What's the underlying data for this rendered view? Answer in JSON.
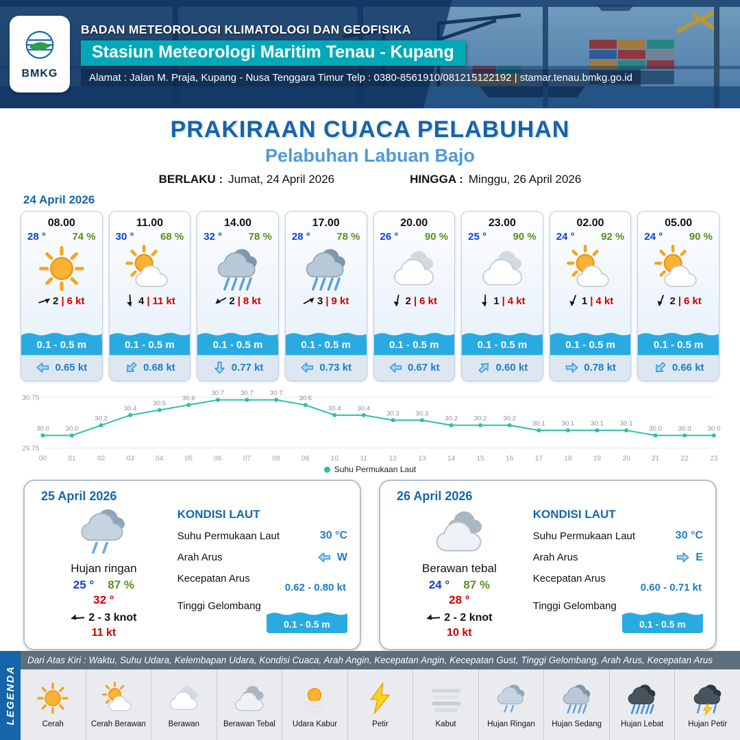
{
  "header": {
    "org": "BADAN METEOROLOGI KLIMATOLOGI DAN GEOFISIKA",
    "station": "Stasiun Meteorologi Maritim Tenau - Kupang",
    "address": "Alamat : Jalan M. Praja, Kupang - Nusa Tenggara Timur Telp : 0380-8561910/081215122192  | stamar.tenau.bmkg.go.id",
    "logo_text": "BMKG"
  },
  "title": {
    "main": "PRAKIRAAN CUACA PELABUHAN",
    "sub": "Pelabuhan Labuan Bajo",
    "valid_from_label": "BERLAKU :",
    "valid_from": "Jumat, 24 April 2026",
    "valid_to_label": "HINGGA :",
    "valid_to": "Minggu, 26 April 2026"
  },
  "hourly": {
    "date": "24 April 2026",
    "sep": "|",
    "cards": [
      {
        "time": "08.00",
        "temp": "28 °",
        "humidity": "74 %",
        "icon": "cerah",
        "wind_speed": "2",
        "gust": "6 kt",
        "wind_rot": 30,
        "wave": "0.1 - 0.5 m",
        "current_speed": "0.65 kt",
        "current_rot": 180
      },
      {
        "time": "11.00",
        "temp": "30 °",
        "humidity": "68 %",
        "icon": "cerah-berawan",
        "wind_speed": "4",
        "gust": "11 kt",
        "wind_rot": 135,
        "wave": "0.1 - 0.5 m",
        "current_speed": "0.68 kt",
        "current_rot": 135
      },
      {
        "time": "14.00",
        "temp": "32 °",
        "humidity": "78 %",
        "icon": "hujan-sedang",
        "wind_speed": "2",
        "gust": "8 kt",
        "wind_rot": 200,
        "wave": "0.1 - 0.5 m",
        "current_speed": "0.77 kt",
        "current_rot": 90
      },
      {
        "time": "17.00",
        "temp": "28 °",
        "humidity": "78 %",
        "icon": "hujan-sedang",
        "wind_speed": "3",
        "gust": "9 kt",
        "wind_rot": 20,
        "wave": "0.1 - 0.5 m",
        "current_speed": "0.73 kt",
        "current_rot": 180
      },
      {
        "time": "20.00",
        "temp": "26 °",
        "humidity": "90 %",
        "icon": "berawan",
        "wind_speed": "2",
        "gust": "6 kt",
        "wind_rot": 150,
        "wave": "0.1 - 0.5 m",
        "current_speed": "0.67 kt",
        "current_rot": 180
      },
      {
        "time": "23.00",
        "temp": "25 °",
        "humidity": "90 %",
        "icon": "berawan",
        "wind_speed": "1",
        "gust": "4 kt",
        "wind_rot": 140,
        "wave": "0.1 - 0.5 m",
        "current_speed": "0.60 kt",
        "current_rot": 315
      },
      {
        "time": "02.00",
        "temp": "24 °",
        "humidity": "92 %",
        "icon": "cerah-berawan",
        "wind_speed": "1",
        "gust": "4 kt",
        "wind_rot": 160,
        "wave": "0.1 - 0.5 m",
        "current_speed": "0.78 kt",
        "current_rot": 0
      },
      {
        "time": "05.00",
        "temp": "24 °",
        "humidity": "90 %",
        "icon": "cerah-berawan",
        "wind_speed": "2",
        "gust": "6 kt",
        "wind_rot": 160,
        "wave": "0.1 - 0.5 m",
        "current_speed": "0.66 kt",
        "current_rot": 135
      }
    ]
  },
  "chart_data": {
    "type": "line",
    "series_name": "Suhu Permukaan Laut",
    "x": [
      "00",
      "01",
      "02",
      "03",
      "04",
      "05",
      "06",
      "07",
      "08",
      "09",
      "10",
      "11",
      "12",
      "13",
      "14",
      "15",
      "16",
      "17",
      "18",
      "19",
      "20",
      "21",
      "22",
      "23"
    ],
    "values": [
      30.0,
      30.0,
      30.2,
      30.4,
      30.5,
      30.6,
      30.7,
      30.7,
      30.7,
      30.6,
      30.4,
      30.4,
      30.3,
      30.3,
      30.2,
      30.2,
      30.2,
      30.1,
      30.1,
      30.1,
      30.1,
      30.0,
      30.0,
      30.0
    ],
    "ylim": [
      29.75,
      30.75
    ],
    "yticks": [
      30.75,
      29.75
    ],
    "line_color": "#2fbfa8",
    "grid": true,
    "legend_position": "bottom"
  },
  "daily": [
    {
      "date": "25 April 2026",
      "icon": "hujan-ringan",
      "condition": "Hujan ringan",
      "temp_min": "25 °",
      "humidity": "87 %",
      "temp_max": "32 °",
      "wind": "2  - 3 knot",
      "wind_rot": 225,
      "gust": "11 kt",
      "sea": {
        "heading": "KONDISI LAUT",
        "sst_label": "Suhu Permukaan Laut",
        "sst": "30 °C",
        "dir_label": "Arah Arus",
        "dir": "W",
        "dir_rot": 180,
        "speed_label": "Kecepatan Arus",
        "speed": "0.62 - 0.80 kt",
        "wave_label": "Tinggi Gelombang",
        "wave": "0.1 - 0.5 m"
      }
    },
    {
      "date": "26 April 2026",
      "icon": "berawan-tebal",
      "condition": "Berawan tebal",
      "temp_min": "24 °",
      "humidity": "87 %",
      "temp_max": "28 °",
      "wind": "2  - 2 knot",
      "wind_rot": 225,
      "gust": "10 kt",
      "sea": {
        "heading": "KONDISI LAUT",
        "sst_label": "Suhu Permukaan Laut",
        "sst": "30 °C",
        "dir_label": "Arah Arus",
        "dir": "E",
        "dir_rot": 0,
        "speed_label": "Kecepatan Arus",
        "speed": "0.60 - 0.71 kt",
        "wave_label": "Tinggi Gelombang",
        "wave": "0.1 - 0.5 m"
      }
    }
  ],
  "legend": {
    "band": "LEGENDA",
    "description": "Dari Atas Kiri : Waktu, Suhu Udara, Kelembapan Udara, Kondisi Cuaca, Arah Angin, Kecepatan Angin, Kecepatan Gust, Tinggi Gelombang, Arah Arus, Kecepatan Arus",
    "items": [
      {
        "icon": "cerah",
        "label": "Cerah"
      },
      {
        "icon": "cerah-berawan",
        "label": "Cerah Berawan"
      },
      {
        "icon": "berawan",
        "label": "Berawan"
      },
      {
        "icon": "berawan-tebal",
        "label": "Berawan Tebal"
      },
      {
        "icon": "udara-kabur",
        "label": "Udara Kabur"
      },
      {
        "icon": "petir",
        "label": "Petir"
      },
      {
        "icon": "kabut",
        "label": "Kabut"
      },
      {
        "icon": "hujan-ringan",
        "label": "Hujan Ringan"
      },
      {
        "icon": "hujan-sedang",
        "label": "Hujan Sedang"
      },
      {
        "icon": "hujan-lebat",
        "label": "Hujan Lebat"
      },
      {
        "icon": "hujan-petir",
        "label": "Hujan Petir"
      }
    ]
  }
}
